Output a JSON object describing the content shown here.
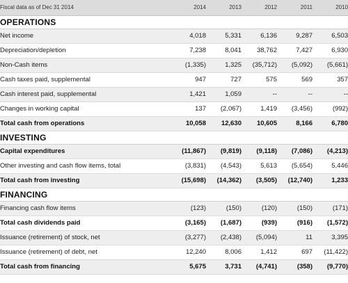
{
  "header": {
    "label": "Fiscal data as of Dec 31 2014",
    "years": [
      "2014",
      "2013",
      "2012",
      "2011",
      "2010"
    ]
  },
  "sections": [
    {
      "title": "OPERATIONS",
      "rows": [
        {
          "label": "Net income",
          "values": [
            "4,018",
            "5,331",
            "6,136",
            "9,287",
            "6,503"
          ],
          "bold": false
        },
        {
          "label": "Depreciation/depletion",
          "values": [
            "7,238",
            "8,041",
            "38,762",
            "7,427",
            "6,930"
          ],
          "bold": false
        },
        {
          "label": "Non-Cash items",
          "values": [
            "(1,335)",
            "1,325",
            "(35,712)",
            "(5,092)",
            "(5,661)"
          ],
          "bold": false
        },
        {
          "label": "Cash taxes paid, supplemental",
          "values": [
            "947",
            "727",
            "575",
            "569",
            "357"
          ],
          "bold": false
        },
        {
          "label": "Cash interest paid, supplemental",
          "values": [
            "1,421",
            "1,059",
            "--",
            "--",
            "--"
          ],
          "bold": false
        },
        {
          "label": "Changes in working capital",
          "values": [
            "137",
            "(2,067)",
            "1,419",
            "(3,456)",
            "(992)"
          ],
          "bold": false
        },
        {
          "label": "Total cash from operations",
          "values": [
            "10,058",
            "12,630",
            "10,605",
            "8,166",
            "6,780"
          ],
          "bold": true
        }
      ]
    },
    {
      "title": "INVESTING",
      "rows": [
        {
          "label": "Capital expenditures",
          "values": [
            "(11,867)",
            "(9,819)",
            "(9,118)",
            "(7,086)",
            "(4,213)"
          ],
          "bold": true
        },
        {
          "label": "Other investing and cash flow items, total",
          "values": [
            "(3,831)",
            "(4,543)",
            "5,613",
            "(5,654)",
            "5,446"
          ],
          "bold": false
        },
        {
          "label": "Total cash from investing",
          "values": [
            "(15,698)",
            "(14,362)",
            "(3,505)",
            "(12,740)",
            "1,233"
          ],
          "bold": true
        }
      ]
    },
    {
      "title": "FINANCING",
      "rows": [
        {
          "label": "Financing cash flow items",
          "values": [
            "(123)",
            "(150)",
            "(120)",
            "(150)",
            "(171)"
          ],
          "bold": false
        },
        {
          "label": "Total cash dividends paid",
          "values": [
            "(3,165)",
            "(1,687)",
            "(939)",
            "(916)",
            "(1,572)"
          ],
          "bold": true
        },
        {
          "label": "Issuance (retirement) of stock, net",
          "values": [
            "(3,277)",
            "(2,438)",
            "(5,094)",
            "11",
            "3,395"
          ],
          "bold": false
        },
        {
          "label": "Issuance (retirement) of debt, net",
          "values": [
            "12,240",
            "8,006",
            "1,412",
            "697",
            "(11,422)"
          ],
          "bold": false
        },
        {
          "label": "Total cash from financing",
          "values": [
            "5,675",
            "3,731",
            "(4,741)",
            "(358)",
            "(9,770)"
          ],
          "bold": true
        }
      ]
    }
  ]
}
